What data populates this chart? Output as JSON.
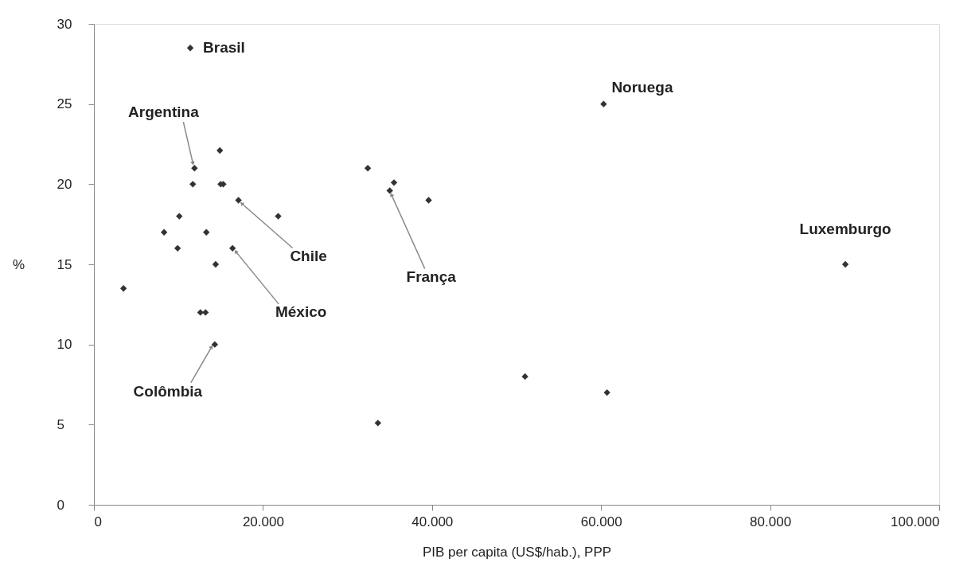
{
  "chart_data": {
    "type": "scatter",
    "xlabel": "PIB per capita (US$/hab.), PPP",
    "ylabel": "%",
    "xlim": [
      0,
      100000
    ],
    "ylim": [
      0,
      30
    ],
    "xticks": [
      0,
      {
        "value": 20000,
        "label": "20.000"
      },
      {
        "value": 40000,
        "label": "40.000"
      },
      {
        "value": 60000,
        "label": "60.000"
      },
      {
        "value": 80000,
        "label": "80.000"
      },
      {
        "value": 100000,
        "label": "100.000"
      }
    ],
    "yticks": [
      0,
      5,
      10,
      15,
      20,
      25,
      30
    ],
    "marker": "diamond",
    "grid": false,
    "series": [
      {
        "color": "#333333",
        "x": [
          11400,
          60300,
          88900,
          11900,
          14900,
          11700,
          15000,
          15300,
          17100,
          21800,
          10100,
          8300,
          13300,
          9900,
          16400,
          14400,
          3500,
          12600,
          13200,
          14300,
          32400,
          35500,
          35000,
          39600,
          51000,
          60700,
          33600
        ],
        "values": [
          28.5,
          25.0,
          15.0,
          21.0,
          22.1,
          20.0,
          20.0,
          20.0,
          19.0,
          18.0,
          18.0,
          17.0,
          17.0,
          16.0,
          16.0,
          15.0,
          13.5,
          12.0,
          12.0,
          10.0,
          21.0,
          20.1,
          19.6,
          19.0,
          8.0,
          7.0,
          5.1
        ]
      }
    ],
    "annotations": [
      {
        "text": "Brasil",
        "x": 11400,
        "y": 28.5
      },
      {
        "text": "Noruega",
        "x": 60300,
        "y": 25.0
      },
      {
        "text": "Luxemburgo",
        "x": 88900,
        "y": 15.0
      },
      {
        "text": "Argentina",
        "x": 11900,
        "y": 21.0
      },
      {
        "text": "Chile",
        "x": 17100,
        "y": 19.0
      },
      {
        "text": "México",
        "x": 16400,
        "y": 16.0
      },
      {
        "text": "Colômbia",
        "x": 14300,
        "y": 10.0
      },
      {
        "text": "França",
        "x": 35000,
        "y": 19.6
      }
    ]
  }
}
